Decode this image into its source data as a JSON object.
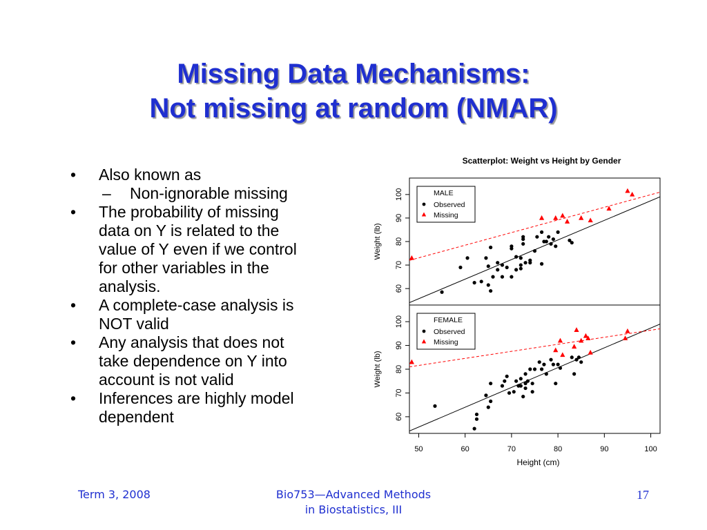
{
  "slide": {
    "title_line1": "Missing Data Mechanisms:",
    "title_line2": "Not missing at random (NMAR)",
    "bullets": [
      {
        "lines": [
          "Also known as"
        ]
      },
      {
        "sub": "Non-ignorable missing"
      },
      {
        "lines": [
          "The probability of missing",
          "data on Y is related to the",
          "value of Y even if we control",
          "for other variables in the",
          "analysis."
        ]
      },
      {
        "lines": [
          "A complete-case analysis is",
          "NOT valid"
        ]
      },
      {
        "lines": [
          "Any analysis that does not",
          "take dependence on Y into",
          "account is not valid"
        ]
      },
      {
        "lines": [
          "Inferences are highly model",
          "dependent"
        ]
      }
    ],
    "bullet_glyph": "•",
    "dash_glyph": "–"
  },
  "footer": {
    "left": "Term 3, 2008",
    "middle_line1": "Bio753—Advanced Methods",
    "middle_line2": "in Biostatistics, III",
    "page": "17"
  },
  "chart_data": {
    "type": "scatter",
    "title": "Scatterplot: Weight vs Height by Gender",
    "xlabel": "Height (cm)",
    "xlim": [
      48,
      102
    ],
    "xticks": [
      50,
      60,
      70,
      80,
      90,
      100
    ],
    "colors": {
      "observed": "#000000",
      "missing": "#ff0000",
      "frame": "#000000"
    },
    "panels": [
      {
        "name": "male",
        "ylabel": "Weight (lb)",
        "ylim": [
          53,
          107
        ],
        "yticks": [
          60,
          70,
          80,
          90,
          100
        ],
        "legend": {
          "title": "MALE",
          "observed": "Observed",
          "missing": "Missing",
          "position": "top-left"
        },
        "observed": [
          [
            55,
            58.5
          ],
          [
            59,
            69
          ],
          [
            60.5,
            73
          ],
          [
            62,
            62.5
          ],
          [
            63.5,
            63
          ],
          [
            64.5,
            73
          ],
          [
            65,
            69.5
          ],
          [
            65,
            61.5
          ],
          [
            65.5,
            59
          ],
          [
            65.5,
            77.5
          ],
          [
            66,
            65
          ],
          [
            67,
            71
          ],
          [
            67,
            68
          ],
          [
            68,
            65
          ],
          [
            68,
            70
          ],
          [
            69,
            69
          ],
          [
            70,
            78
          ],
          [
            70,
            77
          ],
          [
            70,
            65
          ],
          [
            71,
            73.5
          ],
          [
            71,
            68
          ],
          [
            72,
            73
          ],
          [
            72,
            70
          ],
          [
            72,
            68.5
          ],
          [
            72.5,
            81
          ],
          [
            72.5,
            82
          ],
          [
            72.5,
            79
          ],
          [
            73,
            71
          ],
          [
            74,
            72
          ],
          [
            74,
            71
          ],
          [
            75,
            76
          ],
          [
            75.5,
            82
          ],
          [
            76.5,
            70.5
          ],
          [
            76.5,
            84
          ],
          [
            77,
            80
          ],
          [
            77.5,
            80
          ],
          [
            78,
            82
          ],
          [
            78.5,
            79
          ],
          [
            79,
            81
          ],
          [
            79.5,
            78
          ],
          [
            80,
            84
          ],
          [
            82.5,
            80.5
          ],
          [
            83,
            79.5
          ]
        ],
        "missing": [
          [
            48.5,
            73
          ],
          [
            76.5,
            90
          ],
          [
            79.5,
            90
          ],
          [
            81,
            91
          ],
          [
            82,
            88.5
          ],
          [
            85,
            90
          ],
          [
            87,
            89
          ],
          [
            91,
            94
          ],
          [
            95,
            101.5
          ],
          [
            96,
            100
          ]
        ],
        "fit_observed": [
          [
            48,
            54
          ],
          [
            102,
            99
          ]
        ],
        "fit_missing": [
          [
            48,
            72
          ],
          [
            102,
            101
          ]
        ]
      },
      {
        "name": "female",
        "ylabel": "Weight (lb)",
        "ylim": [
          53,
          107
        ],
        "yticks": [
          60,
          70,
          80,
          90,
          100
        ],
        "legend": {
          "title": "FEMALE",
          "observed": "Observed",
          "missing": "Missing",
          "position": "top-left"
        },
        "observed": [
          [
            53.5,
            64.5
          ],
          [
            62,
            55
          ],
          [
            62.5,
            61
          ],
          [
            62.5,
            59
          ],
          [
            64.5,
            69
          ],
          [
            65,
            64
          ],
          [
            65.5,
            74
          ],
          [
            65.5,
            66.5
          ],
          [
            68,
            73
          ],
          [
            68.5,
            75
          ],
          [
            69,
            77
          ],
          [
            69.5,
            70
          ],
          [
            70.5,
            70.5
          ],
          [
            71,
            75
          ],
          [
            71.5,
            73
          ],
          [
            72,
            76
          ],
          [
            72,
            73
          ],
          [
            72.5,
            68.5
          ],
          [
            73,
            78
          ],
          [
            73,
            74
          ],
          [
            73,
            72
          ],
          [
            73.5,
            75
          ],
          [
            74,
            80
          ],
          [
            74.5,
            74
          ],
          [
            74.5,
            70.5
          ],
          [
            75,
            80
          ],
          [
            76,
            83
          ],
          [
            76.5,
            80
          ],
          [
            77,
            82
          ],
          [
            77.5,
            78
          ],
          [
            78.5,
            84
          ],
          [
            79,
            82
          ],
          [
            79.5,
            74
          ],
          [
            80,
            82
          ],
          [
            80.5,
            80.5
          ],
          [
            83,
            85
          ],
          [
            83.5,
            78
          ],
          [
            84,
            84
          ],
          [
            84.5,
            85
          ],
          [
            85,
            83
          ]
        ],
        "missing": [
          [
            48.5,
            83
          ],
          [
            79.5,
            88
          ],
          [
            80.5,
            92
          ],
          [
            81,
            86
          ],
          [
            83.5,
            89.5
          ],
          [
            84,
            96.5
          ],
          [
            85,
            92
          ],
          [
            86,
            94
          ],
          [
            86.5,
            93
          ],
          [
            87,
            87
          ],
          [
            95,
            96
          ],
          [
            94.5,
            93
          ]
        ],
        "fit_observed": [
          [
            48,
            54
          ],
          [
            102,
            99
          ]
        ],
        "fit_missing": [
          [
            48,
            81
          ],
          [
            102,
            97
          ]
        ]
      }
    ]
  }
}
